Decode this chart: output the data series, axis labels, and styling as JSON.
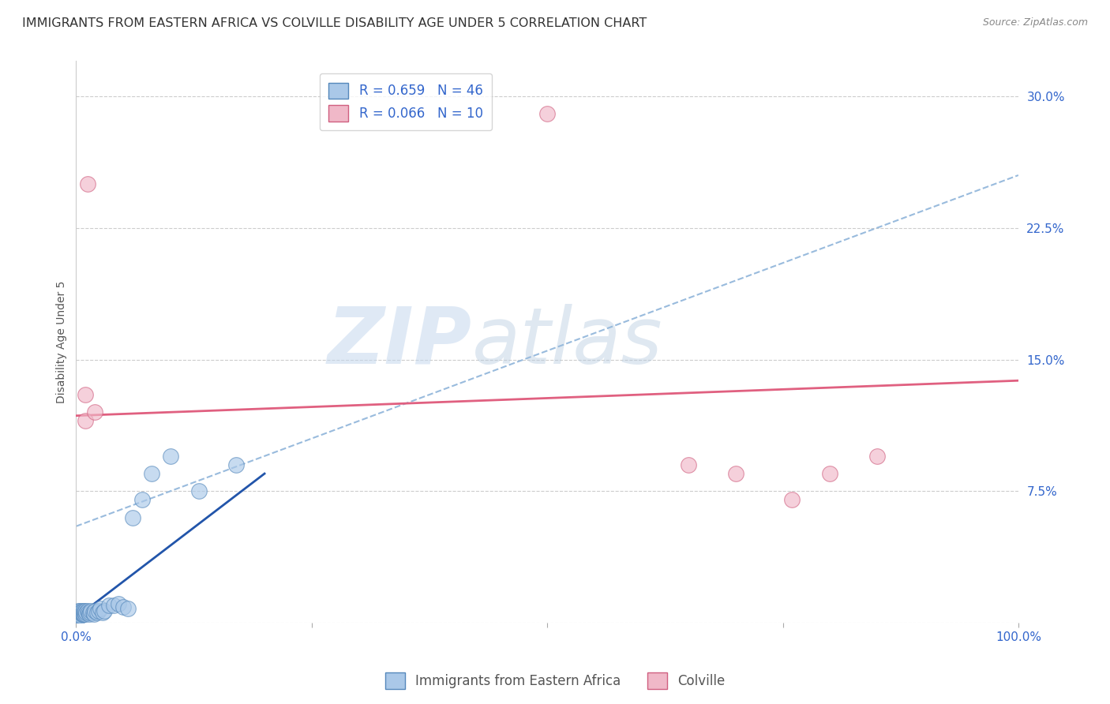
{
  "title": "IMMIGRANTS FROM EASTERN AFRICA VS COLVILLE DISABILITY AGE UNDER 5 CORRELATION CHART",
  "source": "Source: ZipAtlas.com",
  "ylabel": "Disability Age Under 5",
  "watermark_zip": "ZIP",
  "watermark_atlas": "atlas",
  "xlim": [
    0,
    1.0
  ],
  "ylim": [
    0,
    0.32
  ],
  "yticks": [
    0.0,
    0.075,
    0.15,
    0.225,
    0.3
  ],
  "ytick_labels": [
    "",
    "7.5%",
    "15.0%",
    "22.5%",
    "30.0%"
  ],
  "xticks": [
    0.0,
    0.25,
    0.5,
    0.75,
    1.0
  ],
  "xtick_labels": [
    "0.0%",
    "",
    "",
    "",
    "100.0%"
  ],
  "blue_R": 0.659,
  "blue_N": 46,
  "pink_R": 0.066,
  "pink_N": 10,
  "blue_color": "#aac8e8",
  "blue_edge_color": "#5588bb",
  "blue_line_color": "#2255aa",
  "pink_color": "#f0b8c8",
  "pink_edge_color": "#d06080",
  "pink_line_color": "#e06080",
  "dashed_line_color": "#99bbdd",
  "legend_label_blue": "Immigrants from Eastern Africa",
  "legend_label_pink": "Colville",
  "blue_scatter_x": [
    0.001,
    0.001,
    0.001,
    0.002,
    0.002,
    0.002,
    0.003,
    0.003,
    0.004,
    0.004,
    0.005,
    0.005,
    0.006,
    0.006,
    0.007,
    0.007,
    0.008,
    0.008,
    0.009,
    0.01,
    0.01,
    0.011,
    0.012,
    0.013,
    0.014,
    0.015,
    0.016,
    0.018,
    0.019,
    0.02,
    0.022,
    0.024,
    0.026,
    0.028,
    0.03,
    0.035,
    0.04,
    0.045,
    0.05,
    0.055,
    0.06,
    0.07,
    0.08,
    0.1,
    0.13,
    0.17
  ],
  "blue_scatter_y": [
    0.004,
    0.005,
    0.006,
    0.004,
    0.006,
    0.007,
    0.005,
    0.006,
    0.005,
    0.007,
    0.004,
    0.006,
    0.005,
    0.007,
    0.005,
    0.006,
    0.005,
    0.007,
    0.006,
    0.005,
    0.007,
    0.006,
    0.007,
    0.006,
    0.005,
    0.006,
    0.007,
    0.006,
    0.005,
    0.007,
    0.006,
    0.007,
    0.008,
    0.006,
    0.007,
    0.01,
    0.01,
    0.011,
    0.009,
    0.008,
    0.06,
    0.07,
    0.085,
    0.095,
    0.075,
    0.09
  ],
  "pink_scatter_x": [
    0.01,
    0.01,
    0.012,
    0.5,
    0.65,
    0.7,
    0.76,
    0.8,
    0.85,
    0.02
  ],
  "pink_scatter_y": [
    0.13,
    0.115,
    0.25,
    0.29,
    0.09,
    0.085,
    0.07,
    0.085,
    0.095,
    0.12
  ],
  "blue_trend_x": [
    0.0,
    0.2
  ],
  "blue_trend_y": [
    0.003,
    0.085
  ],
  "pink_trend_x": [
    0.0,
    1.0
  ],
  "pink_trend_y": [
    0.118,
    0.138
  ],
  "dashed_trend_x": [
    0.0,
    1.0
  ],
  "dashed_trend_y": [
    0.055,
    0.255
  ],
  "marker_size": 200,
  "title_fontsize": 11.5,
  "axis_label_fontsize": 10,
  "tick_fontsize": 11,
  "legend_fontsize": 12
}
